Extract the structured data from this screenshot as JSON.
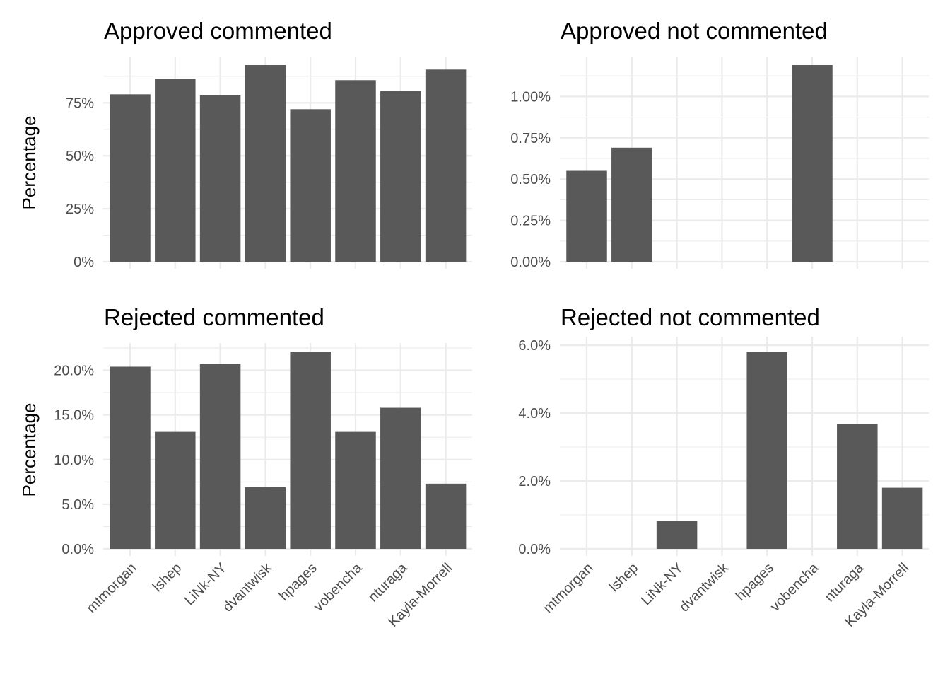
{
  "chart_data": [
    {
      "type": "bar",
      "title": "Approved commented",
      "ylabel": "Percentage",
      "categories": [
        "mtmorgan",
        "lshep",
        "LiNk-NY",
        "dvantwisk",
        "hpages",
        "vobencha",
        "nturaga",
        "Kayla-Morrell"
      ],
      "values": [
        0.79,
        0.862,
        0.785,
        0.928,
        0.72,
        0.857,
        0.805,
        0.907
      ],
      "yticks": [
        0,
        0.25,
        0.5,
        0.75
      ],
      "ytick_labels": [
        "0%",
        "25%",
        "50%",
        "75%"
      ],
      "ylim": [
        0,
        0.928
      ],
      "show_xtick_labels": false
    },
    {
      "type": "bar",
      "title": "Approved not commented",
      "ylabel": "",
      "categories": [
        "mtmorgan",
        "lshep",
        "LiNk-NY",
        "dvantwisk",
        "hpages",
        "vobencha",
        "nturaga",
        "Kayla-Morrell"
      ],
      "values": [
        0.0055,
        0.0069,
        0,
        0,
        0,
        0.0119,
        0,
        0
      ],
      "yticks": [
        0,
        0.0025,
        0.005,
        0.0075,
        0.01
      ],
      "ytick_labels": [
        "0.00%",
        "0.25%",
        "0.50%",
        "0.75%",
        "1.00%"
      ],
      "ylim": [
        0,
        0.0119
      ],
      "show_xtick_labels": false
    },
    {
      "type": "bar",
      "title": "Rejected commented",
      "ylabel": "Percentage",
      "categories": [
        "mtmorgan",
        "lshep",
        "LiNk-NY",
        "dvantwisk",
        "hpages",
        "vobencha",
        "nturaga",
        "Kayla-Morrell"
      ],
      "values": [
        0.204,
        0.131,
        0.207,
        0.069,
        0.221,
        0.131,
        0.158,
        0.073
      ],
      "yticks": [
        0,
        0.05,
        0.1,
        0.15,
        0.2
      ],
      "ytick_labels": [
        "0.0%",
        "5.0%",
        "10.0%",
        "15.0%",
        "20.0%"
      ],
      "ylim": [
        0,
        0.221
      ],
      "show_xtick_labels": true
    },
    {
      "type": "bar",
      "title": "Rejected not commented",
      "ylabel": "",
      "categories": [
        "mtmorgan",
        "lshep",
        "LiNk-NY",
        "dvantwisk",
        "hpages",
        "vobencha",
        "nturaga",
        "Kayla-Morrell"
      ],
      "values": [
        0,
        0,
        0.0083,
        0,
        0.058,
        0,
        0.0367,
        0.018
      ],
      "yticks": [
        0,
        0.02,
        0.04,
        0.06
      ],
      "ytick_labels": [
        "0.0%",
        "2.0%",
        "4.0%",
        "6.0%"
      ],
      "ylim": [
        0,
        0.06
      ],
      "show_xtick_labels": true
    }
  ]
}
